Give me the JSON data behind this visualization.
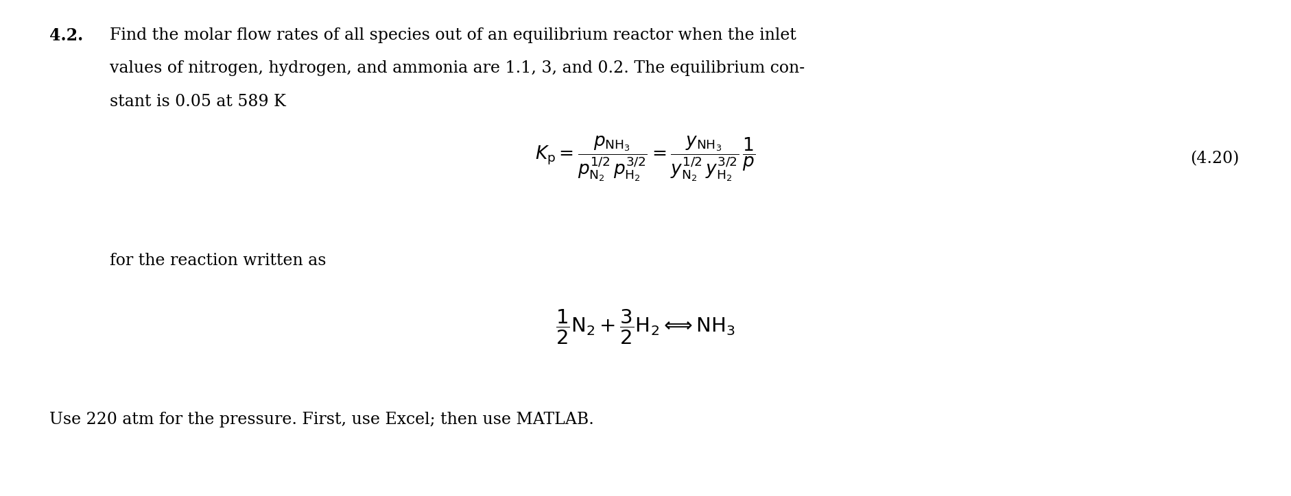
{
  "background_color": "#ffffff",
  "fig_width": 18.82,
  "fig_height": 7.24,
  "dpi": 100,
  "problem_number": "4.2.",
  "problem_text_line1": "Find the molar flow rates of all species out of an equilibrium reactor when the inlet",
  "problem_text_line2": "values of nitrogen, hydrogen, and ammonia are 1.1, 3, and 0.2. The equilibrium con-",
  "problem_text_line3": "stant is 0.05 at 589 K",
  "equation_label": "(4.20)",
  "text_for_reaction": "for the reaction written as",
  "last_line": "Use 220 atm for the pressure. First, use Excel; then use MATLAB."
}
